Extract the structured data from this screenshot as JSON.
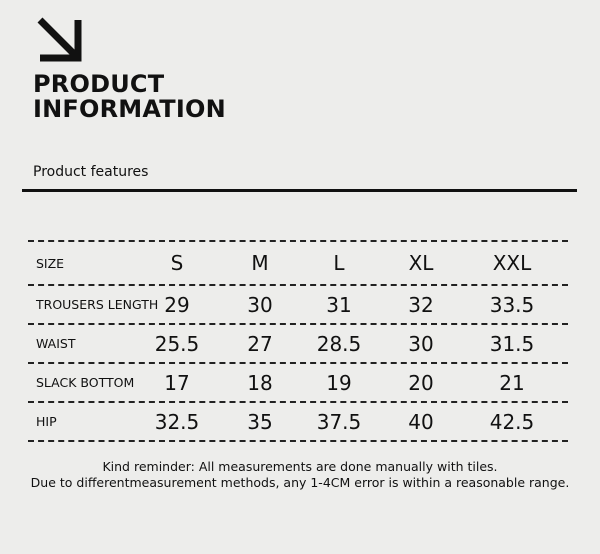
{
  "header": {
    "icon": "arrow-down-right-icon",
    "title_line1": "PRODUCT",
    "title_line2": "INFORMATION",
    "subtitle": "Product features"
  },
  "size_table": {
    "header": {
      "label": "SIZE",
      "sizes": [
        "S",
        "M",
        "L",
        "XL",
        "XXL"
      ]
    },
    "rows": [
      {
        "label": "TROUSERS LENGTH",
        "values": [
          "29",
          "30",
          "31",
          "32",
          "33.5"
        ]
      },
      {
        "label": "WAIST",
        "values": [
          "25.5",
          "27",
          "28.5",
          "30",
          "31.5"
        ]
      },
      {
        "label": "SLACK BOTTOM",
        "values": [
          "17",
          "18",
          "19",
          "20",
          "21"
        ]
      },
      {
        "label": "HIP",
        "values": [
          "32.5",
          "35",
          "37.5",
          "40",
          "42.5"
        ]
      }
    ]
  },
  "footer": {
    "line1": "Kind reminder: All measurements are done manually with tiles.",
    "line2": "Due to differentmeasurement methods, any 1-4CM error is within a reasonable range."
  }
}
